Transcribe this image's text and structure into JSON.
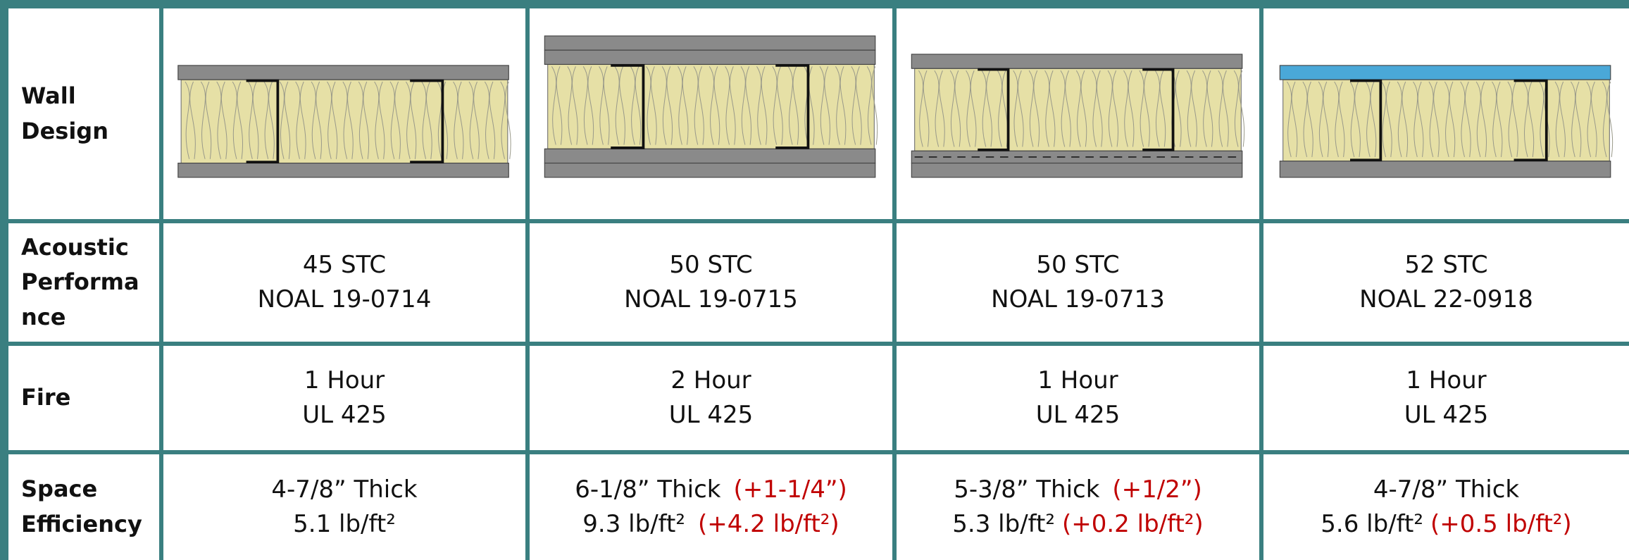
{
  "table": {
    "row_headers": [
      "Wall Design",
      "Acoustic Performance",
      "Fire",
      "Space Efficiency"
    ],
    "acoustic": [
      {
        "stc": "45 STC",
        "noal": "NOAL 19-0714"
      },
      {
        "stc": "50 STC",
        "noal": "NOAL 19-0715"
      },
      {
        "stc": "50 STC",
        "noal": "NOAL 19-0713"
      },
      {
        "stc": "52 STC",
        "noal": "NOAL 22-0918"
      }
    ],
    "fire": [
      {
        "rating": "1 Hour",
        "standard": "UL 425"
      },
      {
        "rating": "2 Hour",
        "standard": "UL 425"
      },
      {
        "rating": "1 Hour",
        "standard": "UL 425"
      },
      {
        "rating": "1 Hour",
        "standard": "UL 425"
      }
    ],
    "space": [
      {
        "thickness": "4-7/8” Thick",
        "weight": "5.1 lb/ft²"
      },
      {
        "thickness": "6-1/8” Thick",
        "thickness_delta": "(+1-1/4”)",
        "weight": "9.3 lb/ft²",
        "weight_delta": "(+4.2 lb/ft²)"
      },
      {
        "thickness": "5-3/8” Thick",
        "thickness_delta": "(+1/2”)",
        "weight": "5.3 lb/ft²",
        "weight_delta": "(+0.2 lb/ft²)"
      },
      {
        "thickness": "4-7/8” Thick",
        "weight": "5.6 lb/ft²",
        "weight_delta": "(+0.5 lb/ft²)"
      }
    ]
  }
}
